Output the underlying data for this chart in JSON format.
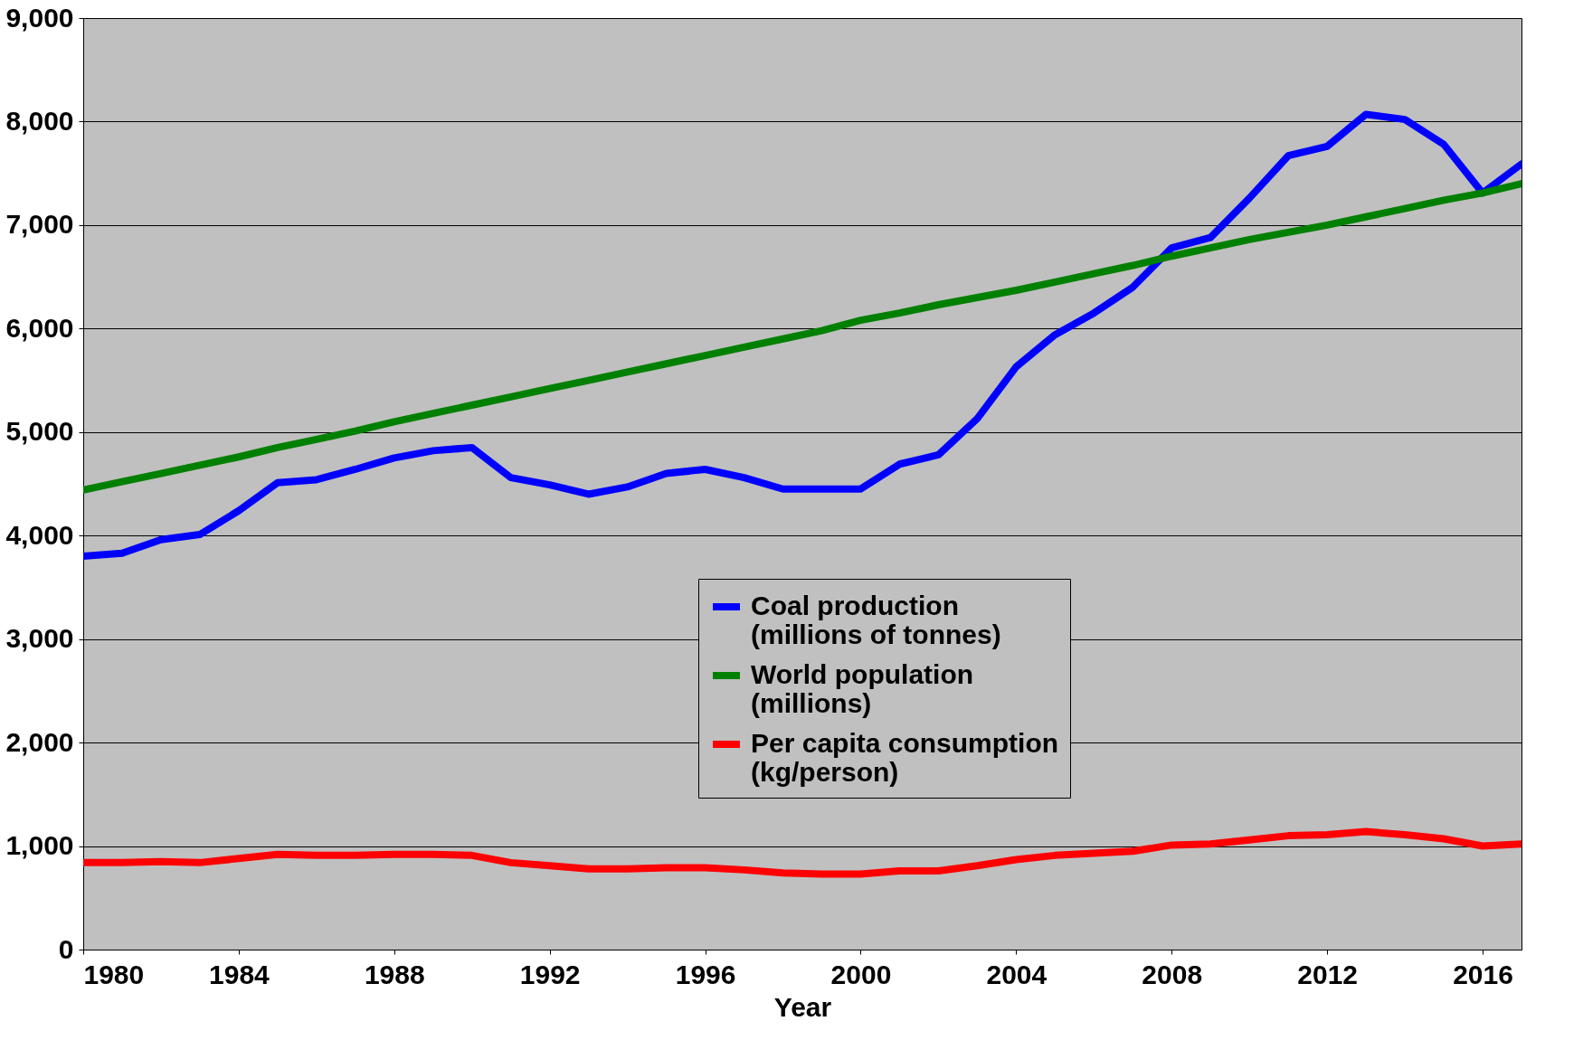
{
  "chart_data": {
    "type": "line",
    "xlabel": "Year",
    "x": [
      1980,
      1981,
      1982,
      1983,
      1984,
      1985,
      1986,
      1987,
      1988,
      1989,
      1990,
      1991,
      1992,
      1993,
      1994,
      1995,
      1996,
      1997,
      1998,
      1999,
      2000,
      2001,
      2002,
      2003,
      2004,
      2005,
      2006,
      2007,
      2008,
      2009,
      2010,
      2011,
      2012,
      2013,
      2014,
      2015,
      2016,
      2017
    ],
    "series": [
      {
        "name": "Coal production (millions of tonnes)",
        "color": "#0000ff",
        "values": [
          3800,
          3830,
          3960,
          4010,
          4240,
          4510,
          4540,
          4640,
          4750,
          4820,
          4850,
          4560,
          4490,
          4400,
          4470,
          4600,
          4640,
          4560,
          4450,
          4450,
          4450,
          4690,
          4780,
          5130,
          5630,
          5940,
          6150,
          6400,
          6780,
          6880,
          7260,
          7670,
          7760,
          8070,
          8020,
          7780,
          7310,
          7590
        ]
      },
      {
        "name": "World population (millions)",
        "color": "#008000",
        "values": [
          4440,
          4520,
          4600,
          4680,
          4760,
          4850,
          4930,
          5010,
          5100,
          5180,
          5260,
          5340,
          5420,
          5500,
          5580,
          5660,
          5740,
          5820,
          5900,
          5980,
          6080,
          6150,
          6230,
          6300,
          6370,
          6450,
          6530,
          6610,
          6700,
          6780,
          6860,
          6930,
          7000,
          7080,
          7160,
          7240,
          7310,
          7400
        ]
      },
      {
        "name": "Per capita consumption (kg/person)",
        "color": "#ff0000",
        "values": [
          840,
          840,
          850,
          840,
          880,
          920,
          910,
          910,
          920,
          920,
          910,
          840,
          810,
          780,
          780,
          790,
          790,
          770,
          740,
          730,
          730,
          760,
          760,
          810,
          870,
          910,
          930,
          950,
          1010,
          1020,
          1060,
          1100,
          1110,
          1140,
          1110,
          1070,
          1000,
          1020
        ]
      }
    ],
    "xlim": [
      1980,
      2017
    ],
    "xticks": [
      1980,
      1984,
      1988,
      1992,
      1996,
      2000,
      2004,
      2008,
      2012,
      2016
    ],
    "ylim": [
      0,
      9000
    ],
    "yticks": [
      0,
      {
        "value": 1000,
        "label": "1,000"
      },
      {
        "value": 2000,
        "label": "2,000"
      },
      {
        "value": 3000,
        "label": "3,000"
      },
      {
        "value": 4000,
        "label": "4,000"
      },
      {
        "value": 5000,
        "label": "5,000"
      },
      {
        "value": 6000,
        "label": "6,000"
      },
      {
        "value": 7000,
        "label": "7,000"
      },
      {
        "value": 8000,
        "label": "8,000"
      },
      {
        "value": 9000,
        "label": "9,000"
      }
    ],
    "grid": "y",
    "legend": "bottom",
    "marker": "none",
    "line_style": "solid"
  }
}
